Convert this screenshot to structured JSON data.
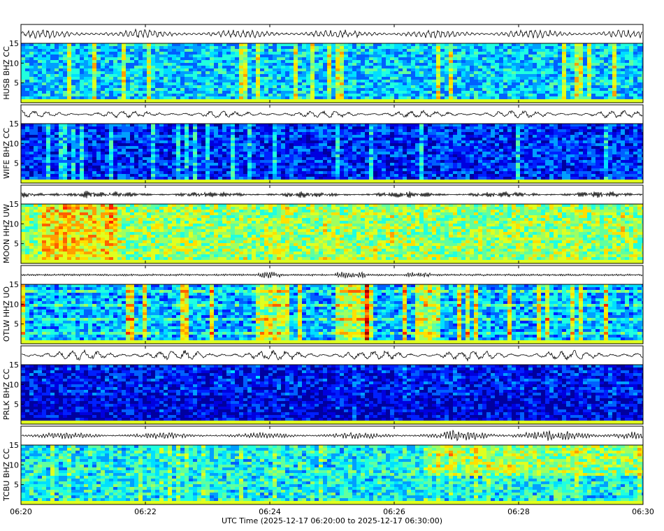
{
  "chart_data": {
    "type": "spectrogram",
    "stations": [
      "HUSB BHZ CC",
      "WIFE BHZ CC",
      "MOON HHZ UW",
      "OTLW HHZ UO",
      "PRLK BHZ CC",
      "TCBU BHZ CC"
    ],
    "xlabel": "UTC Time (2025-12-17 06:20:00 to 2025-12-17 06:30:00)",
    "xlim": [
      0,
      10
    ],
    "xticks": [
      {
        "value": 0,
        "label": "06:20"
      },
      {
        "value": 2,
        "label": "06:22"
      },
      {
        "value": 4,
        "label": "06:24"
      },
      {
        "value": 6,
        "label": "06:26"
      },
      {
        "value": 8,
        "label": "06:28"
      },
      {
        "value": 10,
        "label": "06:30"
      }
    ],
    "ylim": [
      0,
      15
    ],
    "yticks": [
      5,
      10,
      15
    ]
  }
}
